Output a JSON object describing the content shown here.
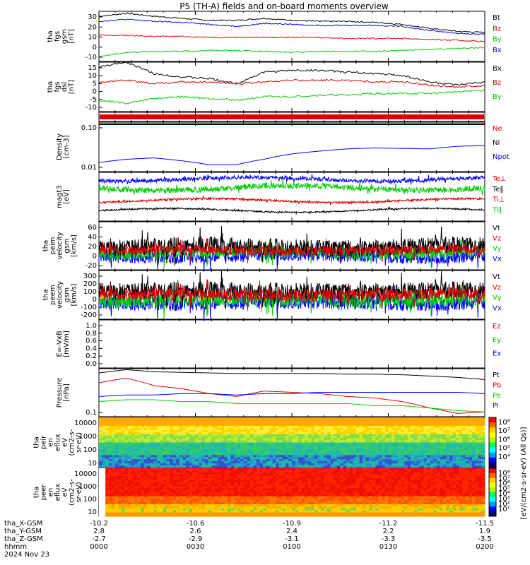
{
  "title": "P5 (TH-A) fields and on-board moments overview",
  "colors": {
    "black": "#000000",
    "red": "#e00000",
    "green": "#00cc00",
    "blue": "#0000ff"
  },
  "panels": [
    {
      "id": "fgs_gsm",
      "label": [
        "tha",
        "fgs",
        "gsm",
        "[nT]"
      ],
      "yticks": [
        "30",
        "20",
        "10",
        "0",
        "-10"
      ],
      "legend": [
        {
          "text": "Bt",
          "color": "black"
        },
        {
          "text": "Bz",
          "color": "red"
        },
        {
          "text": "By",
          "color": "green"
        },
        {
          "text": "Bx",
          "color": "blue"
        }
      ]
    },
    {
      "id": "fgs_dsl",
      "label": [
        "tha",
        "fgs",
        "dsl",
        "[nT]"
      ],
      "yticks": [
        "15",
        "10",
        "5",
        "0",
        "-5",
        "-10"
      ],
      "legend": [
        {
          "text": "Bx",
          "color": "black"
        },
        {
          "text": "Bz",
          "color": "red"
        },
        {
          "text": "By",
          "color": "green"
        }
      ]
    },
    {
      "id": "flags",
      "label": [],
      "yticks": [],
      "legend": []
    },
    {
      "id": "density",
      "label": [
        "Density",
        "[cm-3]"
      ],
      "yticks": [
        "0.10",
        "0.01"
      ],
      "legend": [
        {
          "text": "Ne",
          "color": "red"
        },
        {
          "text": "Ni",
          "color": "black"
        },
        {
          "text": "Npot",
          "color": "blue"
        }
      ]
    },
    {
      "id": "temp",
      "label": [
        "magt3",
        "[eV]"
      ],
      "yticks": [],
      "legend": [
        {
          "text": "Te⊥",
          "color": "red"
        },
        {
          "text": "Te∥",
          "color": "black"
        },
        {
          "text": "Ti⊥",
          "color": "red"
        },
        {
          "text": "Ti∥",
          "color": "green"
        }
      ]
    },
    {
      "id": "peim_vel",
      "label": [
        "tha",
        "peim",
        "velocity",
        "gsm",
        "[km/s]"
      ],
      "yticks": [
        "60",
        "40",
        "20",
        "0",
        "-20"
      ],
      "legend": [
        {
          "text": "Vt",
          "color": "black"
        },
        {
          "text": "Vz",
          "color": "red"
        },
        {
          "text": "Vy",
          "color": "green"
        },
        {
          "text": "Vx",
          "color": "blue"
        }
      ]
    },
    {
      "id": "peem_vel",
      "label": [
        "tha",
        "peem",
        "velocity",
        "gsm",
        "[km/s]"
      ],
      "yticks": [
        "300",
        "200",
        "100",
        "0",
        "-100",
        "-200"
      ],
      "legend": [
        {
          "text": "Vt",
          "color": "black"
        },
        {
          "text": "Vz",
          "color": "red"
        },
        {
          "text": "Vy",
          "color": "green"
        },
        {
          "text": "Vx",
          "color": "blue"
        }
      ]
    },
    {
      "id": "efield",
      "label": [
        "E=-VxB",
        "[mV/m]"
      ],
      "yticks": [
        "1.0",
        "0.8",
        "0.6",
        "0.4",
        "0.2",
        "0.0"
      ],
      "legend": [
        {
          "text": "Ez",
          "color": "red"
        },
        {
          "text": "Ey",
          "color": "green"
        },
        {
          "text": "Ex",
          "color": "blue"
        }
      ]
    },
    {
      "id": "pressure",
      "label": [
        "Pressure",
        "[nPa]"
      ],
      "yticks": [
        "0.1"
      ],
      "legend": [
        {
          "text": "Pt",
          "color": "black"
        },
        {
          "text": "Pb",
          "color": "red"
        },
        {
          "text": "Pe",
          "color": "green"
        },
        {
          "text": "Pi",
          "color": "blue"
        }
      ]
    },
    {
      "id": "peir",
      "label": [
        "tha",
        "peir",
        "en",
        "eflux",
        "eV",
        "(cm2-s-",
        "sr-eV)"
      ],
      "yticks": [
        "10000",
        "1000",
        "100",
        "10"
      ],
      "legend": []
    },
    {
      "id": "peer",
      "label": [
        "tha",
        "peer",
        "en",
        "eflux",
        "eV",
        "(cm2-s-",
        "sr-eV)"
      ],
      "yticks": [
        "10000",
        "1000",
        "100",
        "10"
      ],
      "legend": []
    }
  ],
  "colorbar": {
    "label": "[eV/(cm2-s-sr-eV) (All Qs)]",
    "ticks_top": [
      "10⁸",
      "10⁷",
      "10⁶",
      "10⁵",
      "10⁴"
    ],
    "ticks_bottom": [
      "10⁸",
      "10⁷",
      "10⁶",
      "10⁵",
      "10⁴",
      "10³",
      "10²",
      "10¹"
    ]
  },
  "footer": {
    "row_labels": [
      "tha_X-GSM",
      "tha_Y-GSM",
      "tha_Z-GSM",
      "hhmm",
      "2024 Nov 23"
    ],
    "columns": [
      {
        "x": "-10.2",
        "y": "2.8",
        "z": "-2.7",
        "t": "0000"
      },
      {
        "x": "-10.6",
        "y": "2.6",
        "z": "-2.9",
        "t": "0030"
      },
      {
        "x": "-10.9",
        "y": "2.4",
        "z": "-3.1",
        "t": "0100"
      },
      {
        "x": "-11.2",
        "y": "2.2",
        "z": "-3.3",
        "t": "0130"
      },
      {
        "x": "-11.5",
        "y": "1.9",
        "z": "-3.5",
        "t": "0200"
      }
    ]
  },
  "chart_data": {
    "type": "line",
    "title": "P5 (TH-A) fields and on-board moments overview",
    "x_label": "hhmm",
    "x_ticks": [
      "0000",
      "0030",
      "0100",
      "0130",
      "0200"
    ],
    "series": [
      {
        "panel": "fgs_gsm",
        "name": "Bt",
        "values": [
          30,
          33,
          30,
          28,
          26,
          26,
          28,
          26,
          25,
          25,
          24,
          22,
          18,
          15,
          14
        ]
      },
      {
        "panel": "fgs_gsm",
        "name": "Bz",
        "values": [
          11,
          11,
          10,
          10,
          9,
          9,
          9,
          9,
          9,
          8,
          8,
          8,
          7,
          6,
          5
        ]
      },
      {
        "panel": "fgs_gsm",
        "name": "By",
        "values": [
          -10,
          -6,
          -5,
          -5,
          -4,
          -4,
          -5,
          -6,
          -5,
          -5,
          -5,
          -4,
          -3,
          -2,
          -1
        ]
      },
      {
        "panel": "fgs_gsm",
        "name": "Bx",
        "values": [
          25,
          27,
          25,
          24,
          22,
          20,
          23,
          22,
          21,
          21,
          21,
          20,
          16,
          13,
          12
        ]
      },
      {
        "panel": "fgs_dsl",
        "name": "Bx",
        "values": [
          12,
          15,
          8,
          6,
          5,
          2,
          9,
          10,
          10,
          9,
          8,
          7,
          3,
          1,
          3
        ]
      },
      {
        "panel": "fgs_dsl",
        "name": "Bz",
        "values": [
          3,
          4,
          2,
          3,
          3,
          2,
          3,
          4,
          4,
          4,
          3,
          3,
          1,
          0,
          1
        ]
      },
      {
        "panel": "fgs_dsl",
        "name": "By",
        "values": [
          -8,
          -10,
          -7,
          -6,
          -7,
          -8,
          -6,
          -6,
          -5,
          -5,
          -4,
          -4,
          -4,
          -3,
          -2
        ]
      },
      {
        "panel": "density",
        "name": "Npot",
        "values": [
          0.005,
          0.007,
          0.008,
          0.006,
          0.004,
          0.004,
          0.007,
          0.012,
          0.016,
          0.02,
          0.022,
          0.021,
          0.02,
          0.026,
          0.028
        ]
      },
      {
        "panel": "pressure",
        "name": "Pt",
        "values": [
          0.42,
          0.48,
          0.44,
          0.43,
          0.42,
          0.41,
          0.41,
          0.41,
          0.41,
          0.4,
          0.4,
          0.39,
          0.37,
          0.35,
          0.32
        ]
      },
      {
        "panel": "pressure",
        "name": "Pb",
        "values": [
          0.28,
          0.34,
          0.25,
          0.22,
          0.18,
          0.16,
          0.2,
          0.19,
          0.18,
          0.16,
          0.15,
          0.13,
          0.1,
          0.08,
          0.085
        ]
      },
      {
        "panel": "pressure",
        "name": "Pi",
        "values": [
          0.16,
          0.17,
          0.17,
          0.18,
          0.18,
          0.17,
          0.18,
          0.18,
          0.19,
          0.19,
          0.19,
          0.19,
          0.19,
          0.19,
          0.18
        ]
      },
      {
        "panel": "pressure",
        "name": "Pe",
        "values": [
          0.13,
          0.14,
          0.14,
          0.13,
          0.13,
          0.12,
          0.12,
          0.12,
          0.12,
          0.12,
          0.11,
          0.11,
          0.1,
          0.09,
          0.085
        ]
      }
    ]
  }
}
